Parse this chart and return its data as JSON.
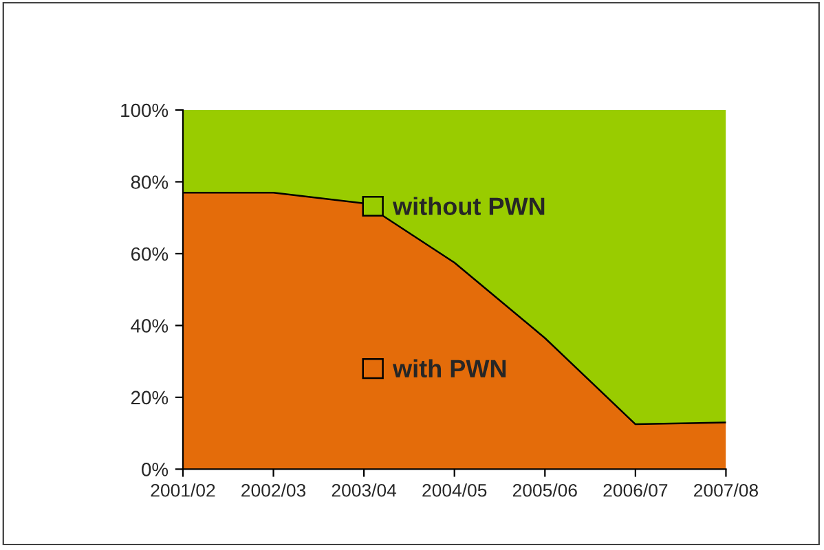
{
  "chart_data": {
    "type": "area",
    "stacked": true,
    "categories": [
      "2001/02",
      "2002/03",
      "2003/04",
      "2004/05",
      "2005/06",
      "2006/07",
      "2007/08"
    ],
    "series": [
      {
        "name": "with PWN",
        "color": "#e46c0a",
        "values": [
          77,
          77,
          74,
          57.5,
          36.5,
          12.5,
          13
        ]
      },
      {
        "name": "without PWN",
        "color": "#99cc00",
        "values": [
          23,
          23,
          26,
          42.5,
          63.5,
          87.5,
          87
        ]
      }
    ],
    "ylim": [
      0,
      100
    ],
    "yticks": [
      {
        "value": 0,
        "label": "0%"
      },
      {
        "value": 20,
        "label": "20%"
      },
      {
        "value": 40,
        "label": "40%"
      },
      {
        "value": 60,
        "label": "60%"
      },
      {
        "value": 80,
        "label": "80%"
      },
      {
        "value": 100,
        "label": "100%"
      }
    ],
    "grid": false,
    "legend": "center"
  }
}
